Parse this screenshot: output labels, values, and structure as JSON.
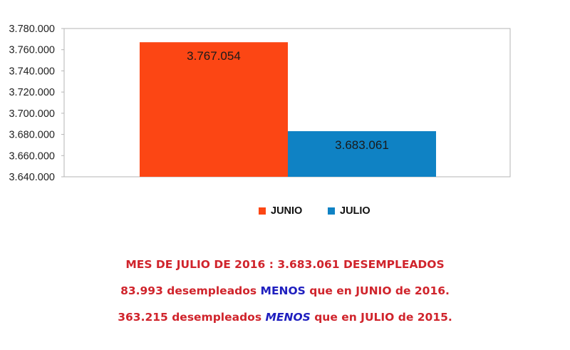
{
  "chart_data": {
    "type": "bar",
    "categories": [
      ""
    ],
    "series": [
      {
        "name": "JUNIO",
        "values": [
          3767054
        ],
        "label": "3.767.054",
        "color": "#fc4614"
      },
      {
        "name": "JULIO",
        "values": [
          3683061
        ],
        "label": "3.683.061",
        "color": "#0f82c4"
      }
    ],
    "ylim": [
      3640000,
      3780000
    ],
    "yticks": [
      {
        "value": 3780000,
        "label": "3.780.000"
      },
      {
        "value": 3760000,
        "label": "3.760.000"
      },
      {
        "value": 3740000,
        "label": "3.740.000"
      },
      {
        "value": 3720000,
        "label": "3.720.000"
      },
      {
        "value": 3700000,
        "label": "3.700.000"
      },
      {
        "value": 3680000,
        "label": "3.680.000"
      },
      {
        "value": 3660000,
        "label": "3.660.000"
      },
      {
        "value": 3640000,
        "label": "3.640.000"
      }
    ],
    "grid": false,
    "legend_position": "bottom-center"
  },
  "captions": {
    "line1": "MES DE JULIO DE 2016 : 3.683.061 DESEMPLEADOS",
    "line2_pre": "83.993 desempleados ",
    "line2_hl": "MENOS",
    "line2_post": " que en JUNIO de 2016.",
    "line3_pre": "363.215 desempleados ",
    "line3_hl": "MENOS",
    "line3_post": " que en JULIO de 2015."
  },
  "colors": {
    "caption_red": "#d0242c",
    "caption_blue": "#1f1fbf"
  }
}
